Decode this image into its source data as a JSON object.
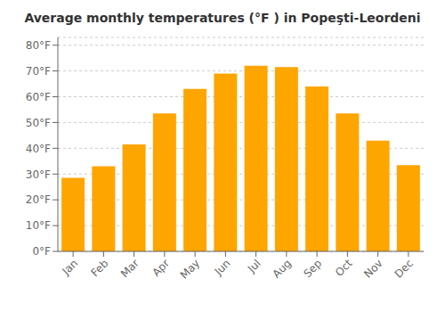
{
  "chart_data": {
    "type": "bar",
    "title": "Average monthly temperatures (°F ) in Popeşti-Leordeni",
    "categories": [
      "Jan",
      "Feb",
      "Mar",
      "Apr",
      "May",
      "Jun",
      "Jul",
      "Aug",
      "Sep",
      "Oct",
      "Nov",
      "Dec"
    ],
    "values": [
      28.5,
      33.0,
      41.5,
      53.5,
      63.0,
      69.0,
      72.0,
      71.5,
      64.0,
      53.5,
      43.0,
      33.5
    ],
    "color": "#FFA500",
    "ylim": [
      0,
      83
    ],
    "yticks": [
      {
        "value": 0,
        "label": "0°F"
      },
      {
        "value": 10,
        "label": "10°F"
      },
      {
        "value": 20,
        "label": "20°F"
      },
      {
        "value": 30,
        "label": "30°F"
      },
      {
        "value": 40,
        "label": "40°F"
      },
      {
        "value": 50,
        "label": "50°F"
      },
      {
        "value": 60,
        "label": "60°F"
      },
      {
        "value": 70,
        "label": "70°F"
      },
      {
        "value": 80,
        "label": "80°F"
      }
    ],
    "grid": true
  }
}
